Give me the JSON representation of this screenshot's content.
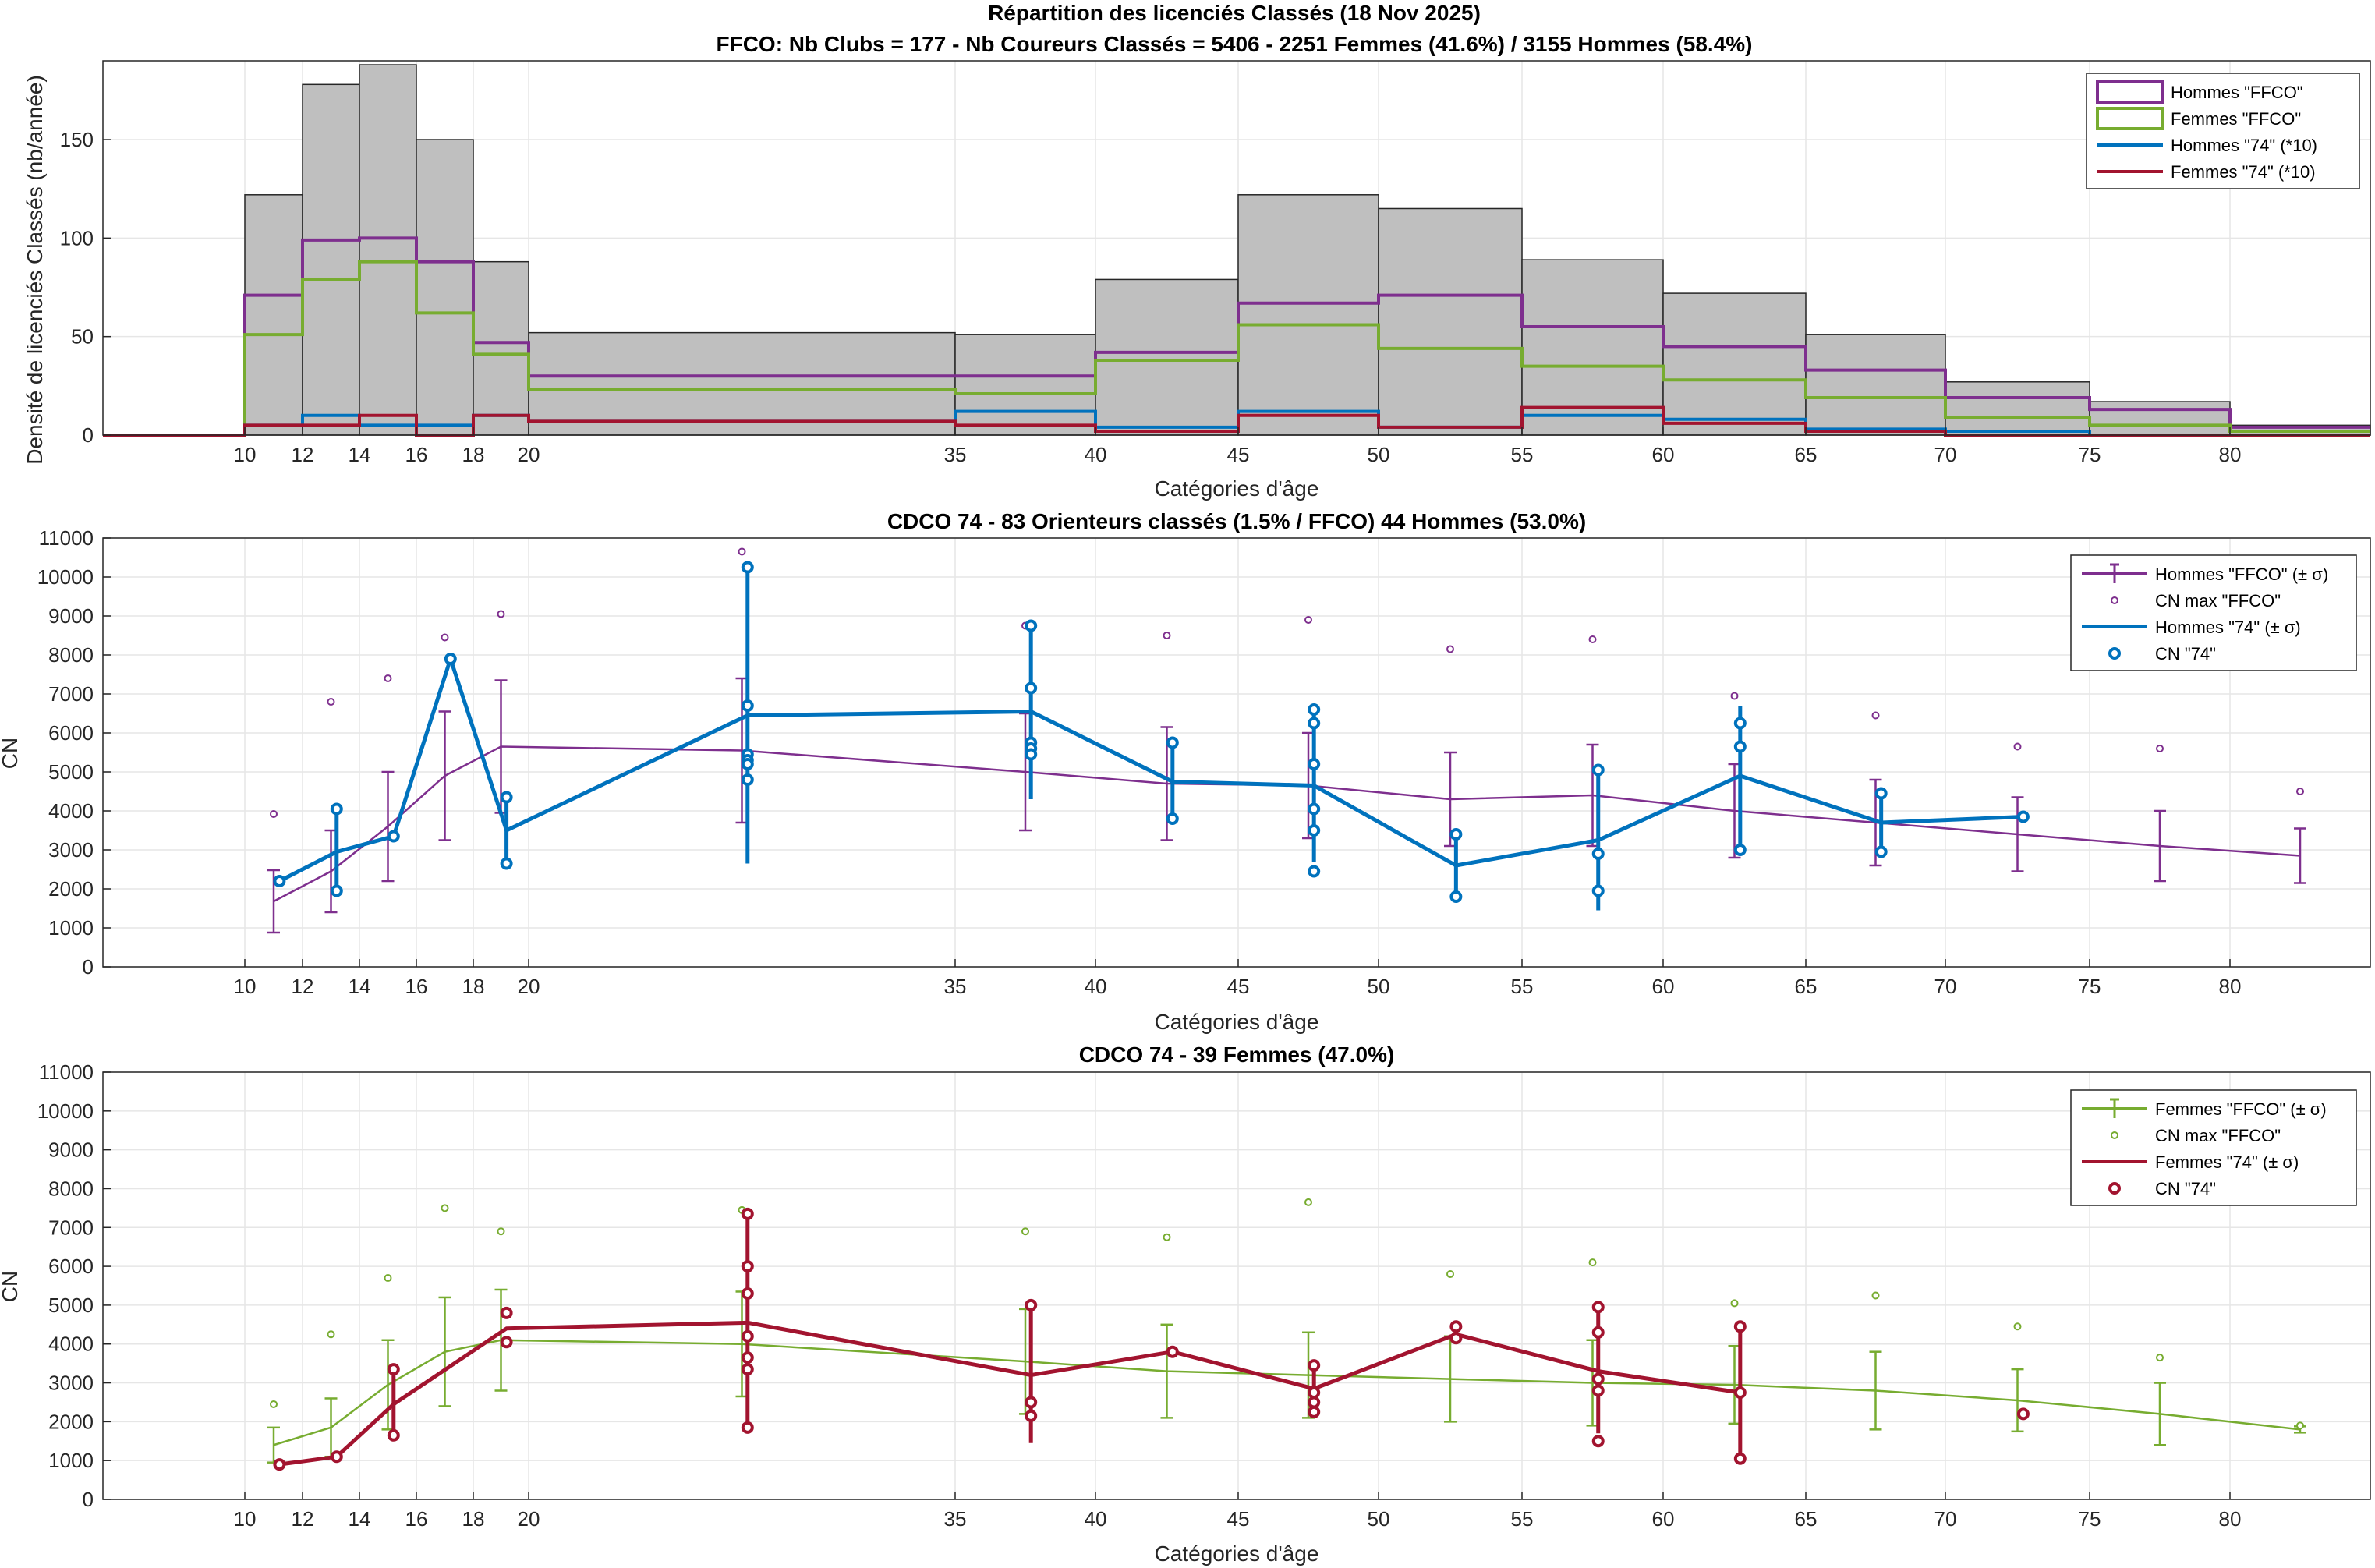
{
  "chart_data": [
    {
      "type": "bar",
      "title": "Répartition des licenciés Classés (18 Nov 2025)",
      "subtitle": "FFCO: Nb Clubs = 177   -   Nb Coureurs Classés = 5406   -   2251 Femmes (41.6%) / 3155 Hommes (58.4%)",
      "xlabel": "Catégories d'âge",
      "ylabel": "Densité de licenciés Classés (nb/année)",
      "xlim": [
        0,
        80
      ],
      "ylim": [
        0,
        190
      ],
      "yticks": [
        0,
        50,
        100,
        150
      ],
      "xtick_values": [
        10,
        12,
        14,
        16,
        18,
        20,
        35,
        40,
        45,
        50,
        55,
        60,
        65,
        70,
        75,
        80
      ],
      "xtick_labels": [
        "10",
        "12",
        "14",
        "16",
        "18",
        "20",
        "35",
        "40",
        "45",
        "50",
        "55",
        "60",
        "65",
        "70",
        "75",
        "80"
      ],
      "bin_edges": [
        -5,
        10,
        12,
        14,
        16,
        18,
        20,
        35,
        40,
        45,
        50,
        55,
        60,
        65,
        70,
        75,
        80,
        85
      ],
      "total_values": [
        0,
        122,
        178,
        188,
        150,
        88,
        52,
        51,
        79,
        122,
        115,
        89,
        72,
        51,
        27,
        17,
        5
      ],
      "series": [
        {
          "name": "Hommes \"FFCO\"",
          "color": "#7E2F8E",
          "values": [
            0,
            71,
            99,
            100,
            88,
            47,
            30,
            30,
            42,
            67,
            71,
            55,
            45,
            33,
            19,
            13,
            4
          ]
        },
        {
          "name": "Femmes \"FFCO\"",
          "color": "#77AC30",
          "values": [
            0,
            51,
            79,
            88,
            62,
            41,
            23,
            21,
            38,
            56,
            44,
            35,
            28,
            19,
            9,
            5,
            2
          ]
        },
        {
          "name": "Hommes \"74\" (*10)",
          "color": "#0072BD",
          "values": [
            0,
            5,
            10,
            5,
            5,
            10,
            7,
            12,
            4,
            12,
            4,
            10,
            8,
            3,
            2,
            0,
            0
          ]
        },
        {
          "name": "Femmes \"74\" (*10)",
          "color": "#A2142F",
          "values": [
            0,
            5,
            5,
            10,
            0,
            10,
            7,
            5,
            2,
            10,
            4,
            14,
            6,
            2,
            0,
            0,
            0
          ]
        }
      ],
      "grid": true,
      "legend_position": "top-right"
    },
    {
      "type": "line",
      "title": "CDCO 74  -  83 Orienteurs classés (1.5% / FFCO)  44 Hommes (53.0%)",
      "xlabel": "Catégories d'âge",
      "ylabel": "CN",
      "xlim": [
        0,
        80
      ],
      "ylim": [
        0,
        11000
      ],
      "yticks": [
        0,
        1000,
        2000,
        3000,
        4000,
        5000,
        6000,
        7000,
        8000,
        9000,
        10000,
        11000
      ],
      "xtick_values": [
        10,
        12,
        14,
        16,
        18,
        20,
        35,
        40,
        45,
        50,
        55,
        60,
        65,
        70,
        75,
        80
      ],
      "xtick_labels": [
        "10",
        "12",
        "14",
        "16",
        "18",
        "20",
        "35",
        "40",
        "45",
        "50",
        "55",
        "60",
        "65",
        "70",
        "75",
        "80"
      ],
      "series": [
        {
          "name": "Hommes \"FFCO\" (± σ)",
          "color": "#7E2F8E",
          "kind": "errorbar-line",
          "x": [
            11,
            13,
            15,
            17,
            19,
            27.5,
            37.5,
            42.5,
            47.5,
            52.5,
            57.5,
            62.5,
            67.5,
            72.5,
            77.5,
            82.5
          ],
          "y": [
            1680,
            2450,
            3600,
            4900,
            5650,
            5550,
            5000,
            4700,
            4650,
            4300,
            4400,
            4000,
            3700,
            3400,
            3100,
            2850
          ],
          "err": [
            800,
            1050,
            1400,
            1650,
            1700,
            1850,
            1500,
            1450,
            1350,
            1200,
            1300,
            1200,
            1100,
            950,
            900,
            700
          ]
        },
        {
          "name": "CN max \"FFCO\"",
          "color": "#7E2F8E",
          "kind": "marker",
          "x": [
            11,
            13,
            15,
            17,
            19,
            27.5,
            37.5,
            42.5,
            47.5,
            52.5,
            57.5,
            62.5,
            67.5,
            72.5,
            77.5,
            82.5
          ],
          "y": [
            3920,
            6800,
            7400,
            8450,
            9050,
            10650,
            8750,
            8500,
            8900,
            8150,
            8400,
            6950,
            6450,
            5650,
            5600,
            4500
          ]
        },
        {
          "name": "Hommes \"74\" (± σ)",
          "color": "#0072BD",
          "kind": "errorbar-line",
          "x": [
            11.2,
            13.2,
            15.2,
            17.2,
            19.2,
            27.7,
            37.7,
            42.7,
            47.7,
            52.7,
            57.7,
            62.7,
            67.7,
            72.7
          ],
          "y": [
            2200,
            2950,
            3350,
            7900,
            3500,
            6450,
            6550,
            4750,
            4650,
            2600,
            3250,
            4900,
            3700,
            3850
          ],
          "err": [
            0,
            1100,
            0,
            0,
            800,
            3800,
            2250,
            950,
            1950,
            850,
            1800,
            1800,
            700,
            0
          ]
        },
        {
          "name": "CN \"74\"",
          "color": "#0072BD",
          "kind": "marker",
          "x": [
            11.2,
            13.2,
            13.2,
            15.2,
            17.2,
            19.2,
            19.2,
            27.7,
            27.7,
            27.7,
            27.7,
            27.7,
            27.7,
            37.7,
            37.7,
            37.7,
            37.7,
            37.7,
            42.7,
            42.7,
            47.7,
            47.7,
            47.7,
            47.7,
            47.7,
            47.7,
            52.7,
            52.7,
            57.7,
            57.7,
            57.7,
            62.7,
            62.7,
            62.7,
            67.7,
            67.7,
            72.7
          ],
          "y": [
            2200,
            4050,
            1950,
            3350,
            7900,
            4350,
            2650,
            10250,
            6700,
            5450,
            5300,
            5200,
            4800,
            8750,
            7150,
            5750,
            5600,
            5450,
            5750,
            3800,
            6600,
            6250,
            5200,
            4050,
            3500,
            2450,
            3400,
            1800,
            5050,
            2900,
            1950,
            6250,
            5650,
            3000,
            4450,
            2950,
            3850
          ]
        }
      ],
      "grid": true,
      "legend_position": "top-right"
    },
    {
      "type": "line",
      "title": "CDCO 74  -  39 Femmes (47.0%)",
      "xlabel": "Catégories d'âge",
      "ylabel": "CN",
      "xlim": [
        0,
        80
      ],
      "ylim": [
        0,
        11000
      ],
      "yticks": [
        0,
        1000,
        2000,
        3000,
        4000,
        5000,
        6000,
        7000,
        8000,
        9000,
        10000,
        11000
      ],
      "xtick_values": [
        10,
        12,
        14,
        16,
        18,
        20,
        35,
        40,
        45,
        50,
        55,
        60,
        65,
        70,
        75,
        80
      ],
      "xtick_labels": [
        "10",
        "12",
        "14",
        "16",
        "18",
        "20",
        "35",
        "40",
        "45",
        "50",
        "55",
        "60",
        "65",
        "70",
        "75",
        "80"
      ],
      "series": [
        {
          "name": "Femmes \"FFCO\" (± σ)",
          "color": "#77AC30",
          "kind": "errorbar-line",
          "x": [
            11,
            13,
            15,
            17,
            19,
            27.5,
            37.5,
            42.5,
            47.5,
            52.5,
            57.5,
            62.5,
            67.5,
            72.5,
            77.5,
            82.5
          ],
          "y": [
            1400,
            1850,
            2950,
            3800,
            4100,
            4000,
            3550,
            3300,
            3200,
            3100,
            3000,
            2950,
            2800,
            2550,
            2200,
            1800
          ],
          "err": [
            450,
            750,
            1150,
            1400,
            1300,
            1350,
            1350,
            1200,
            1100,
            1100,
            1100,
            1000,
            1000,
            800,
            800,
            80
          ]
        },
        {
          "name": "CN max \"FFCO\"",
          "color": "#77AC30",
          "kind": "marker",
          "x": [
            11,
            13,
            15,
            17,
            19,
            27.5,
            37.5,
            42.5,
            47.5,
            52.5,
            57.5,
            62.5,
            67.5,
            72.5,
            77.5,
            82.5
          ],
          "y": [
            2450,
            4250,
            5700,
            7500,
            6900,
            7450,
            6900,
            6750,
            7650,
            5800,
            6100,
            5050,
            5250,
            4450,
            3650,
            1900
          ]
        },
        {
          "name": "Femmes \"74\" (± σ)",
          "color": "#A2142F",
          "kind": "errorbar-line",
          "x": [
            11.2,
            13.2,
            15.2,
            19.2,
            27.7,
            37.7,
            42.7,
            47.7,
            52.7,
            57.7,
            62.7
          ],
          "y": [
            900,
            1100,
            2450,
            4400,
            4550,
            3200,
            3800,
            2850,
            4250,
            3300,
            2750
          ],
          "err": [
            0,
            0,
            850,
            0,
            2800,
            1750,
            0,
            600,
            0,
            1600,
            1750
          ]
        },
        {
          "name": "CN \"74\"",
          "color": "#A2142F",
          "kind": "marker",
          "x": [
            11.2,
            13.2,
            15.2,
            15.2,
            19.2,
            19.2,
            27.7,
            27.7,
            27.7,
            27.7,
            27.7,
            27.7,
            27.7,
            37.7,
            37.7,
            37.7,
            42.7,
            47.7,
            47.7,
            47.7,
            47.7,
            52.7,
            52.7,
            57.7,
            57.7,
            57.7,
            57.7,
            57.7,
            62.7,
            62.7,
            62.7,
            72.7
          ],
          "y": [
            900,
            1100,
            3350,
            1650,
            4800,
            4050,
            7350,
            6000,
            5300,
            4200,
            3650,
            3350,
            1850,
            5000,
            2500,
            2150,
            3800,
            3450,
            2750,
            2500,
            2250,
            4450,
            4150,
            4950,
            4300,
            3100,
            2800,
            1500,
            4450,
            2750,
            1050,
            2200
          ]
        }
      ],
      "grid": true,
      "legend_position": "top-right"
    }
  ]
}
